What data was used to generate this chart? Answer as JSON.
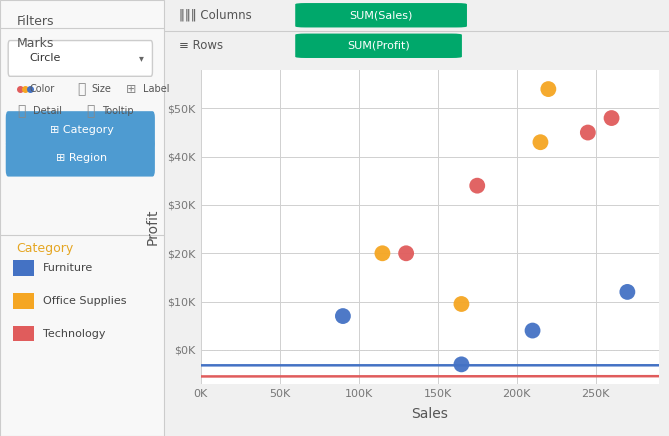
{
  "title": "",
  "xlabel": "Sales",
  "ylabel": "Profit",
  "xlim": [
    0,
    290000
  ],
  "ylim": [
    -7000,
    58000
  ],
  "xticks": [
    0,
    50000,
    100000,
    150000,
    200000,
    250000
  ],
  "yticks": [
    0,
    10000,
    20000,
    30000,
    40000,
    50000
  ],
  "bg_color": "#f0f0f0",
  "plot_bg_color": "#ffffff",
  "grid_color": "#d0d0d0",
  "categories": {
    "Furniture": {
      "color": "#4472c4",
      "points": [
        [
          90000,
          7000
        ],
        [
          165000,
          -3000
        ],
        [
          210000,
          4000
        ],
        [
          270000,
          12000
        ]
      ]
    },
    "Office Supplies": {
      "color": "#f5a623",
      "points": [
        [
          115000,
          20000
        ],
        [
          165000,
          9500
        ],
        [
          215000,
          43000
        ],
        [
          220000,
          54000
        ]
      ]
    },
    "Technology": {
      "color": "#e05c5c",
      "points": [
        [
          130000,
          20000
        ],
        [
          175000,
          34000
        ],
        [
          245000,
          45000
        ],
        [
          260000,
          48000
        ]
      ]
    }
  },
  "trend_lines": {
    "Furniture": {
      "color": "#4472c4",
      "x": [
        0,
        290000
      ],
      "slope": 3.45e-05,
      "intercept": -3200
    },
    "Office Supplies": {
      "color": "#f5a623",
      "x": [
        85000,
        290000
      ],
      "slope": 0.000235,
      "intercept": -15000
    },
    "Technology": {
      "color": "#e05c5c",
      "x": [
        0,
        290000
      ],
      "slope": 0.000185,
      "intercept": -5500
    }
  },
  "legend_labels": [
    "Furniture",
    "Office Supplies",
    "Technology"
  ],
  "legend_colors": [
    "#4472c4",
    "#f5a623",
    "#e05c5c"
  ],
  "pill_color": "#4e9bd1",
  "green_color": "#00a86b"
}
